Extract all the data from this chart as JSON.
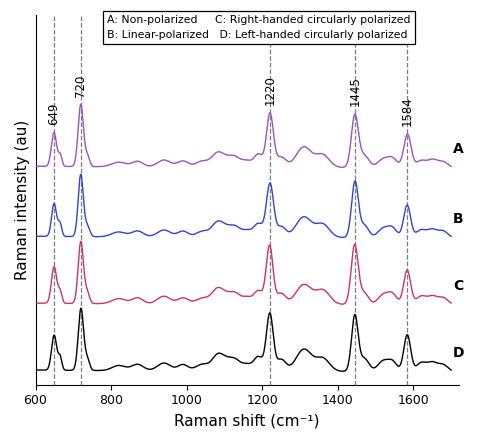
{
  "xmin": 600,
  "xmax": 1700,
  "xlabel": "Raman shift (cm⁻¹)",
  "ylabel": "Raman intensity (au)",
  "colors": {
    "A": "#9955BB",
    "B": "#3344CC",
    "C": "#CC3366",
    "D": "#000000"
  },
  "offsets": {
    "A": 3.2,
    "B": 2.1,
    "C": 1.05,
    "D": 0.0
  },
  "peaks": [
    649,
    720,
    1220,
    1445,
    1584
  ],
  "peak_labels": [
    "649",
    "720",
    "1220",
    "1445",
    "1584"
  ],
  "legend_text": [
    [
      "A: Non-polarized",
      "C: Right-handed circularly polarized"
    ],
    [
      "B: Linear-polarized",
      "D: Left-handed circularly polarized"
    ]
  ],
  "background": "#ffffff",
  "dashed_color": "#666666"
}
